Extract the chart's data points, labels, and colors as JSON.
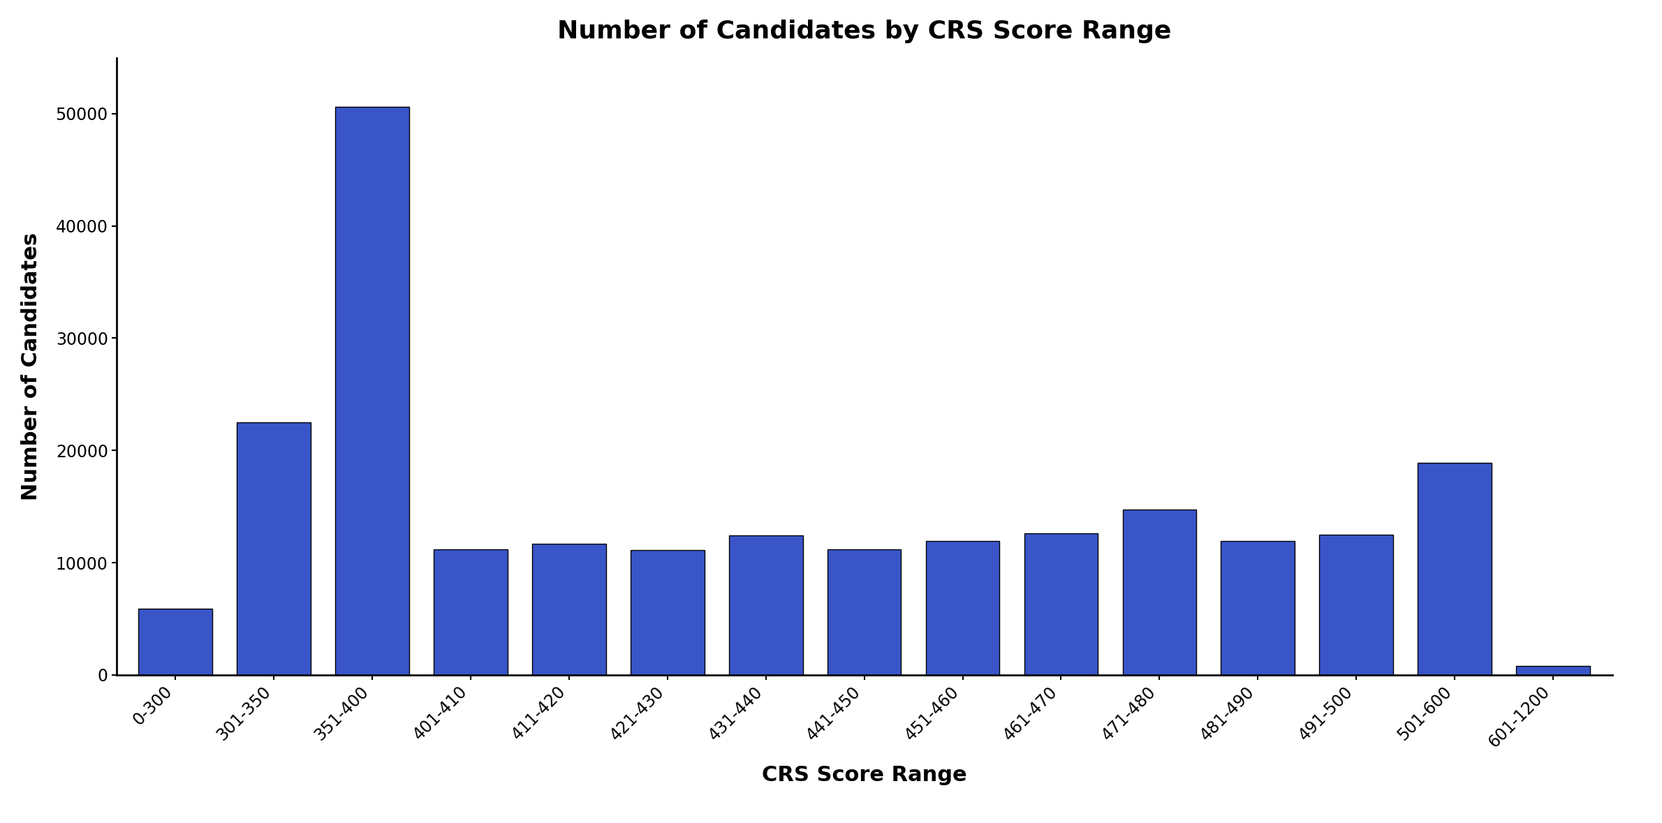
{
  "title": "Number of Candidates by CRS Score Range",
  "xlabel": "CRS Score Range",
  "ylabel": "Number of Candidates",
  "categories": [
    "0-300",
    "301-350",
    "351-400",
    "401-410",
    "411-420",
    "421-430",
    "431-440",
    "441-450",
    "451-460",
    "461-470",
    "471-480",
    "481-490",
    "491-500",
    "501-600",
    "601-1200"
  ],
  "values": [
    5900,
    22500,
    50600,
    11200,
    11700,
    11100,
    12400,
    11200,
    11900,
    12600,
    14700,
    11900,
    12500,
    18900,
    800
  ],
  "bar_color": "#3a55c8",
  "bar_edgecolor": "black",
  "background_color": "#ffffff",
  "title_fontsize": 26,
  "axis_label_fontsize": 22,
  "tick_fontsize": 17,
  "ylim": [
    0,
    55000
  ],
  "yticks": [
    0,
    10000,
    20000,
    30000,
    40000,
    50000
  ]
}
